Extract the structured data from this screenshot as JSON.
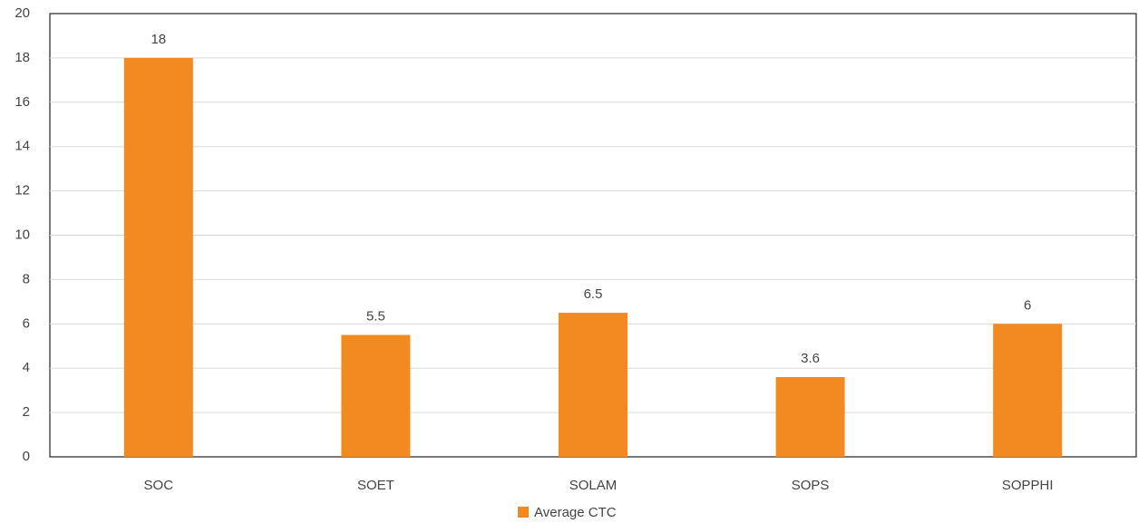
{
  "chart_data": {
    "type": "bar",
    "categories": [
      "SOC",
      "SOET",
      "SOLAM",
      "SOPS",
      "SOPPHI"
    ],
    "series": [
      {
        "name": "Average CTC",
        "color": "#f28a21",
        "values": [
          18,
          5.5,
          6.5,
          3.6,
          6
        ]
      }
    ],
    "ylim": [
      0,
      20
    ],
    "yticks": [
      0,
      2,
      4,
      6,
      8,
      10,
      12,
      14,
      16,
      18,
      20
    ],
    "grid": true,
    "legend": "bottom"
  }
}
